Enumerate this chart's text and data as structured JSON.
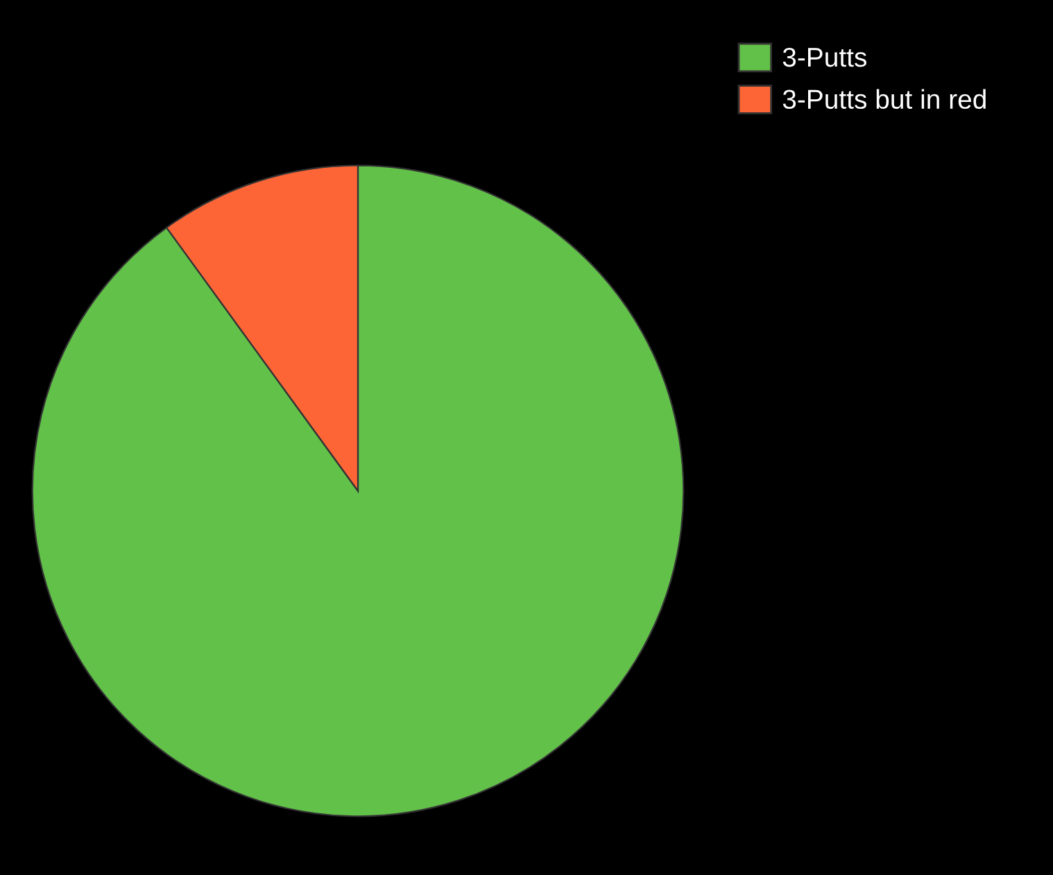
{
  "chart_data": {
    "type": "pie",
    "categories": [
      "3-Putts",
      "3-Putts but in red"
    ],
    "values": [
      90,
      10
    ],
    "colors": [
      "#62c148",
      "#fd6537"
    ],
    "legend": "top right"
  }
}
